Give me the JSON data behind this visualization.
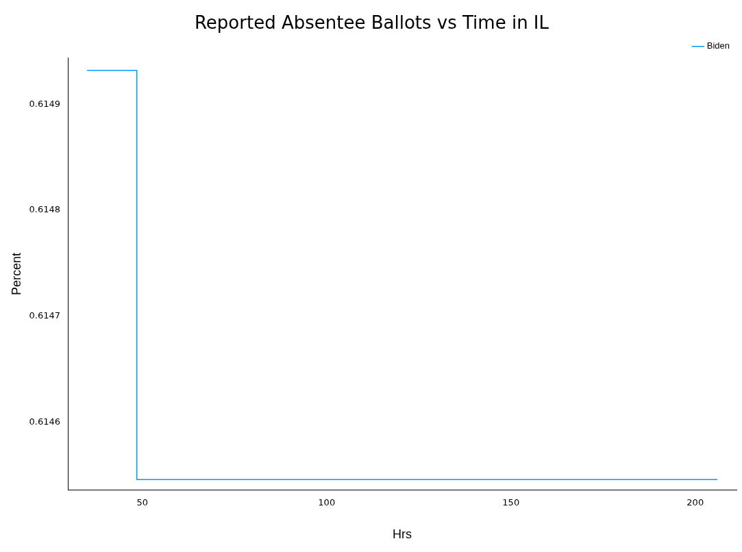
{
  "chart_data": {
    "type": "step",
    "title": "Reported Absentee Ballots vs Time in IL",
    "xlabel": "Hrs",
    "ylabel": "Percent",
    "x": [
      35,
      48.5,
      206
    ],
    "series": [
      {
        "name": "Biden",
        "color": "#009afa",
        "values": [
          0.614932,
          0.614546,
          0.614546
        ]
      }
    ],
    "xlim": [
      29.8,
      211.2
    ],
    "xticks": [
      50,
      100,
      150,
      200
    ],
    "ylim": [
      0.614536,
      0.614944
    ],
    "yticks": [
      0.6146,
      0.6147,
      0.6148,
      0.6149
    ],
    "grid": false,
    "legend": "top right",
    "line_style": "solid",
    "marker": "none"
  }
}
